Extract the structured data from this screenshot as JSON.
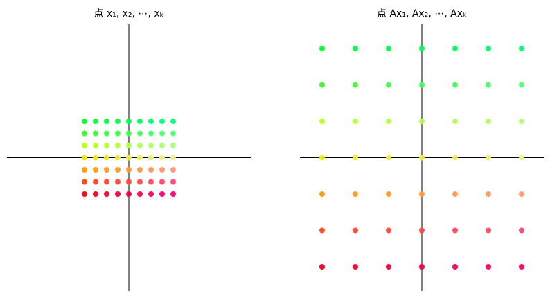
{
  "chart_data": [
    {
      "type": "scatter",
      "title": "点 x₁, x₂, ⋯, xₖ",
      "xlim": [
        -11,
        11
      ],
      "ylim": [
        -11,
        11
      ],
      "series": [
        {
          "x": [
            -4,
            -3,
            -2,
            -1,
            0,
            1,
            2,
            3,
            4
          ],
          "values": [
            3,
            3,
            3,
            3,
            3,
            3,
            3,
            3,
            3
          ],
          "colors": [
            "#00ff22",
            "#00ff2e",
            "#00ff3a",
            "#00ff46",
            "#00ff52",
            "#00ff5e",
            "#00ff6a",
            "#00ff76",
            "#00ff82"
          ]
        },
        {
          "x": [
            -4,
            -3,
            -2,
            -1,
            0,
            1,
            2,
            3,
            4
          ],
          "values": [
            2,
            2,
            2,
            2,
            2,
            2,
            2,
            2,
            2
          ],
          "colors": [
            "#33ff22",
            "#36ff2e",
            "#3aff3a",
            "#3eff46",
            "#42ff52",
            "#46ff5e",
            "#4aff6a",
            "#4eff76",
            "#52ff82"
          ]
        },
        {
          "x": [
            -4,
            -3,
            -2,
            -1,
            0,
            1,
            2,
            3,
            4
          ],
          "values": [
            1,
            1,
            1,
            1,
            1,
            1,
            1,
            1,
            1
          ],
          "colors": [
            "#bbff11",
            "#b9ff1f",
            "#b7ff2d",
            "#b5ff3b",
            "#b3ff49",
            "#b1ff57",
            "#afff65",
            "#adff73",
            "#abff81"
          ]
        },
        {
          "x": [
            -4,
            -3,
            -2,
            -1,
            0,
            1,
            2,
            3,
            4
          ],
          "values": [
            0,
            0,
            0,
            0,
            0,
            0,
            0,
            0,
            0
          ],
          "colors": [
            "#eeee00",
            "#eeee13",
            "#eeee26",
            "#eeee39",
            "#eeee4c",
            "#eeee5f",
            "#eeee72",
            "#eeee85",
            "#eeee98"
          ]
        },
        {
          "x": [
            -4,
            -3,
            -2,
            -1,
            0,
            1,
            2,
            3,
            4
          ],
          "values": [
            -1,
            -1,
            -1,
            -1,
            -1,
            -1,
            -1,
            -1,
            -1
          ],
          "colors": [
            "#ff9900",
            "#ff990f",
            "#ff991e",
            "#ff992d",
            "#ff993c",
            "#ff994b",
            "#ff995a",
            "#ff9969",
            "#ff9978"
          ]
        },
        {
          "x": [
            -4,
            -3,
            -2,
            -1,
            0,
            1,
            2,
            3,
            4
          ],
          "values": [
            -2,
            -2,
            -2,
            -2,
            -2,
            -2,
            -2,
            -2,
            -2
          ],
          "colors": [
            "#ff4411",
            "#ff441e",
            "#ff442b",
            "#ff4438",
            "#ff4445",
            "#ff4452",
            "#ff445f",
            "#ff446c",
            "#ff4479"
          ]
        },
        {
          "x": [
            -4,
            -3,
            -2,
            -1,
            0,
            1,
            2,
            3,
            4
          ],
          "values": [
            -3,
            -3,
            -3,
            -3,
            -3,
            -3,
            -3,
            -3,
            -3
          ],
          "colors": [
            "#ee0011",
            "#ef001e",
            "#f1002b",
            "#f20038",
            "#f40045",
            "#f60052",
            "#f8005f",
            "#f9006c",
            "#fb0079"
          ]
        }
      ]
    },
    {
      "type": "scatter",
      "title": "点 Ax₁, Ax₂, ⋯, Axₖ",
      "xlim": [
        -11,
        11
      ],
      "ylim": [
        -11,
        11
      ],
      "series": [
        {
          "x": [
            -9,
            -6,
            -3,
            0,
            3,
            6,
            9
          ],
          "values": [
            9,
            9,
            9,
            9,
            9,
            9,
            9
          ],
          "colors": [
            "#00ff2e",
            "#00ff3a",
            "#00ff46",
            "#00ff52",
            "#00ff5e",
            "#00ff6a",
            "#00ff76"
          ]
        },
        {
          "x": [
            -9,
            -6,
            -3,
            0,
            3,
            6,
            9
          ],
          "values": [
            6,
            6,
            6,
            6,
            6,
            6,
            6
          ],
          "colors": [
            "#36ff2e",
            "#3aff3a",
            "#3eff46",
            "#42ff52",
            "#46ff5e",
            "#4aff6a",
            "#4eff76"
          ]
        },
        {
          "x": [
            -9,
            -6,
            -3,
            0,
            3,
            6,
            9
          ],
          "values": [
            3,
            3,
            3,
            3,
            3,
            3,
            3
          ],
          "colors": [
            "#b9ff1f",
            "#b7ff2d",
            "#b5ff3b",
            "#b3ff49",
            "#b1ff57",
            "#afff65",
            "#adff73"
          ]
        },
        {
          "x": [
            -9,
            -6,
            -3,
            0,
            3,
            6,
            9
          ],
          "values": [
            0,
            0,
            0,
            0,
            0,
            0,
            0
          ],
          "colors": [
            "#eeee13",
            "#eeee26",
            "#eeee39",
            "#eeee4c",
            "#eeee5f",
            "#eeee72",
            "#eeee85"
          ]
        },
        {
          "x": [
            -9,
            -6,
            -3,
            0,
            3,
            6,
            9
          ],
          "values": [
            -3,
            -3,
            -3,
            -3,
            -3,
            -3,
            -3
          ],
          "colors": [
            "#ff990f",
            "#ff991e",
            "#ff992d",
            "#ff993c",
            "#ff994b",
            "#ff995a",
            "#ff9969"
          ]
        },
        {
          "x": [
            -9,
            -6,
            -3,
            0,
            3,
            6,
            9
          ],
          "values": [
            -6,
            -6,
            -6,
            -6,
            -6,
            -6,
            -6
          ],
          "colors": [
            "#ff441e",
            "#ff442b",
            "#ff4438",
            "#ff4445",
            "#ff4452",
            "#ff445f",
            "#ff446c"
          ]
        },
        {
          "x": [
            -9,
            -6,
            -3,
            0,
            3,
            6,
            9
          ],
          "values": [
            -9,
            -9,
            -9,
            -9,
            -9,
            -9,
            -9
          ],
          "colors": [
            "#ef001e",
            "#f1002b",
            "#f20038",
            "#f40045",
            "#f60052",
            "#f8005f",
            "#f9006c"
          ]
        }
      ]
    }
  ]
}
